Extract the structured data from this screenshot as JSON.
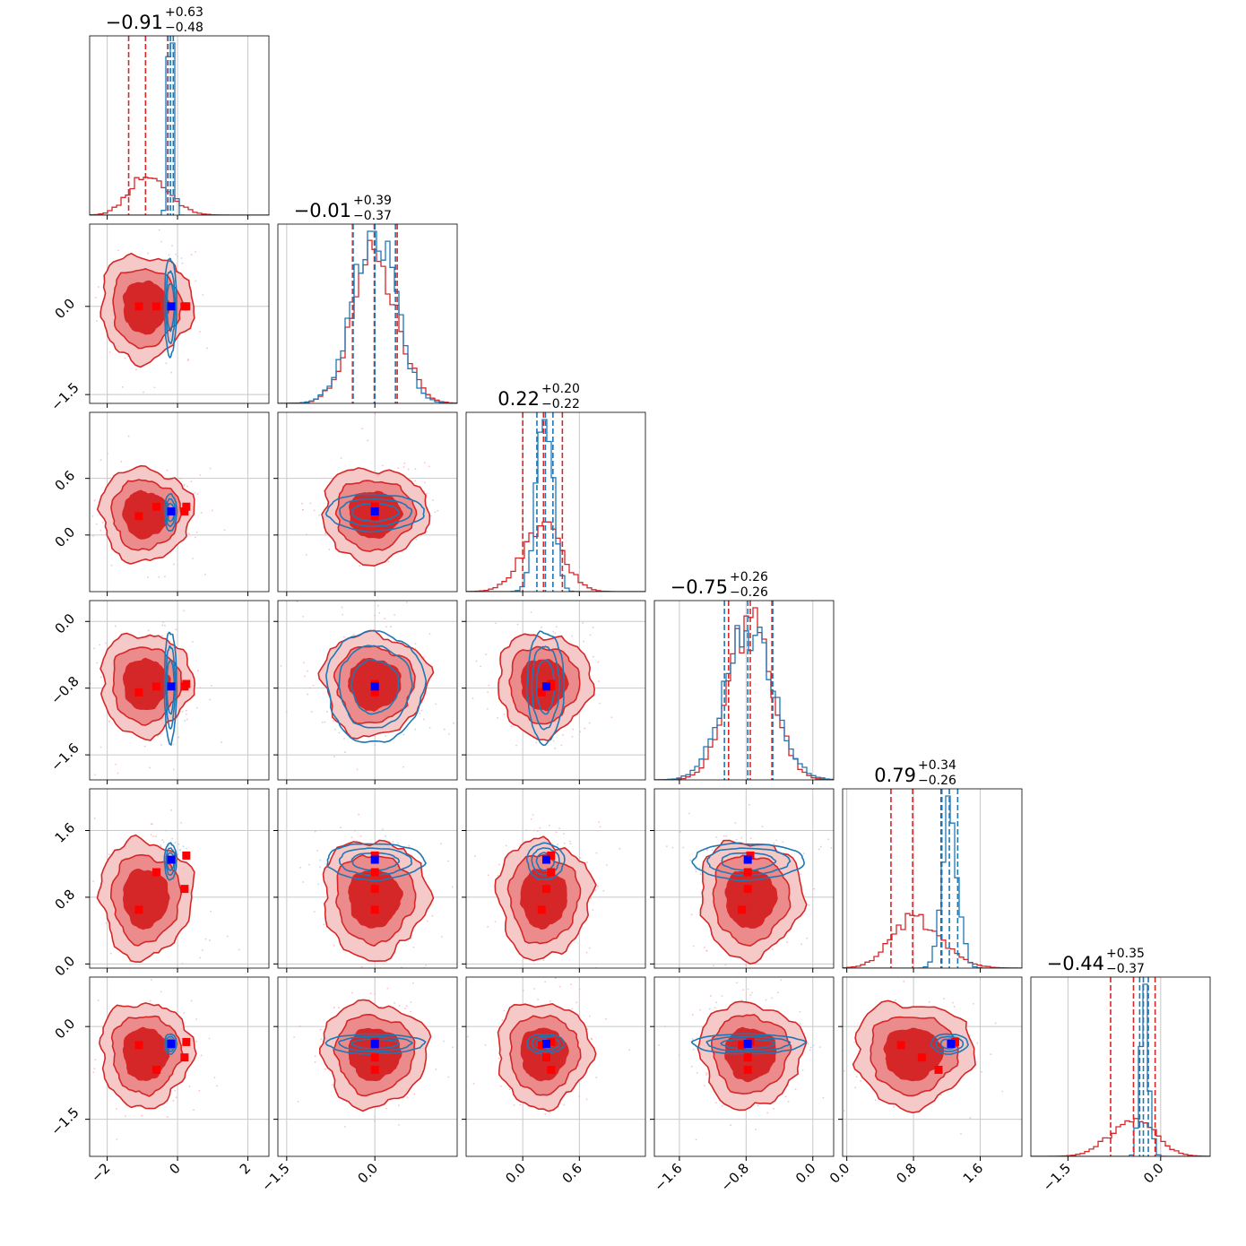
{
  "chart_data": {
    "type": "corner",
    "grid": true,
    "colors": {
      "red": "#d62728",
      "blue": "#1f77b4",
      "marker_blue": "#0000ff",
      "marker_red": "#ff0000"
    },
    "params": [
      {
        "range": [
          -2.5,
          2.6
        ],
        "ticks": [
          {
            "v": -2,
            "label": "−2"
          },
          {
            "v": 0,
            "label": "0"
          },
          {
            "v": 2,
            "label": "2"
          }
        ],
        "title": {
          "value": "−0.91",
          "plus": "+0.63",
          "minus": "−0.48"
        },
        "quantiles": {
          "red": [
            -1.39,
            -0.91,
            -0.28
          ],
          "blue": [
            -0.27,
            -0.2,
            -0.12
          ]
        },
        "truth": -0.18,
        "red_points": [
          -1.1,
          -0.6,
          0.25,
          0.2
        ]
      },
      {
        "range": [
          -1.65,
          1.4
        ],
        "ticks": [
          {
            "v": -1.5,
            "label": "−1.5"
          },
          {
            "v": 0.0,
            "label": "0.0"
          }
        ],
        "title": {
          "value": "−0.01",
          "plus": "+0.39",
          "minus": "−0.37"
        },
        "quantiles": {
          "red": [
            -0.38,
            -0.01,
            0.38
          ],
          "blue": [
            -0.37,
            0.0,
            0.35
          ]
        },
        "truth": 0.0,
        "red_points": [
          0.0,
          0.0,
          0.0,
          0.0
        ]
      },
      {
        "range": [
          -0.6,
          1.3
        ],
        "ticks": [
          {
            "v": 0.0,
            "label": "0.0"
          },
          {
            "v": 0.6,
            "label": "0.6"
          }
        ],
        "title": {
          "value": "0.22",
          "plus": "+0.20",
          "minus": "−0.22"
        },
        "quantiles": {
          "red": [
            0.0,
            0.22,
            0.42
          ],
          "blue": [
            0.15,
            0.24,
            0.32
          ]
        },
        "truth": 0.25,
        "red_points": [
          0.2,
          0.3,
          0.3,
          0.25
        ]
      },
      {
        "range": [
          -1.9,
          0.25
        ],
        "ticks": [
          {
            "v": -1.6,
            "label": "−1.6"
          },
          {
            "v": -0.8,
            "label": "−0.8"
          },
          {
            "v": 0.0,
            "label": "0.0"
          }
        ],
        "title": {
          "value": "−0.75",
          "plus": "+0.26",
          "minus": "−0.26"
        },
        "quantiles": {
          "red": [
            -1.01,
            -0.75,
            -0.49
          ],
          "blue": [
            -1.06,
            -0.78,
            -0.48
          ]
        },
        "truth": -0.78,
        "red_points": [
          -0.85,
          -0.78,
          -0.75,
          -0.78
        ]
      },
      {
        "range": [
          -0.05,
          2.1
        ],
        "ticks": [
          {
            "v": 0.0,
            "label": "0.0"
          },
          {
            "v": 0.8,
            "label": "0.8"
          },
          {
            "v": 1.6,
            "label": "1.6"
          }
        ],
        "title": {
          "value": "0.79",
          "plus": "+0.34",
          "minus": "−0.26"
        },
        "quantiles": {
          "red": [
            0.53,
            0.79,
            1.13
          ],
          "blue": [
            1.14,
            1.23,
            1.33
          ]
        },
        "truth": 1.25,
        "red_points": [
          0.65,
          1.1,
          1.3,
          0.9
        ]
      },
      {
        "range": [
          -2.1,
          0.8
        ],
        "ticks": [
          {
            "v": -1.5,
            "label": "−1.5"
          },
          {
            "v": 0.0,
            "label": "0.0"
          }
        ],
        "title": {
          "value": "−0.44",
          "plus": "+0.35",
          "minus": "−0.37"
        },
        "quantiles": {
          "red": [
            -0.81,
            -0.44,
            -0.09
          ],
          "blue": [
            -0.34,
            -0.28,
            -0.2
          ]
        },
        "truth": -0.28,
        "red_points": [
          -0.3,
          -0.7,
          -0.25,
          -0.5
        ]
      }
    ]
  }
}
